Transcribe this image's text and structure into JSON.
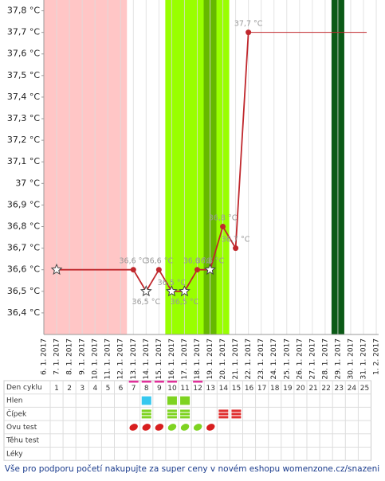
{
  "chart_data": {
    "type": "line",
    "categories": [
      "6. 1. 2017",
      "7. 1. 2017",
      "8. 1. 2017",
      "9. 1. 2017",
      "10. 1. 2017",
      "11. 1. 2017",
      "12. 1. 2017",
      "13. 1. 2017",
      "14. 1. 2017",
      "15. 1. 2017",
      "16. 1. 2017",
      "17. 1. 2017",
      "18. 1. 2017",
      "19. 1. 2017",
      "20. 1. 2017",
      "21. 1. 2017",
      "22. 1. 2017",
      "23. 1. 2017",
      "24. 1. 2017",
      "25. 1. 2017",
      "26. 1. 2017",
      "27. 1. 2017",
      "28. 1. 2017",
      "29. 1. 2017",
      "30. 1. 2017",
      "31. 1. 2017",
      "1. 2. 2017"
    ],
    "x": [
      "7. 1. 2017",
      "13. 1. 2017",
      "14. 1. 2017",
      "15. 1. 2017",
      "16. 1. 2017",
      "17. 1. 2017",
      "18. 1. 2017",
      "19. 1. 2017",
      "20. 1. 2017",
      "21. 1. 2017",
      "22. 1. 2017"
    ],
    "values": [
      36.6,
      36.6,
      36.5,
      36.6,
      36.5,
      36.5,
      36.6,
      36.6,
      36.8,
      36.7,
      37.7
    ],
    "value_labels": [
      null,
      "36,6 °C",
      "36,5 °C",
      "36,6 °C",
      "36,5 °C",
      "36,5 °C",
      "36,6 °C",
      "36,6 °C",
      "36,8 °C",
      "36,7 °C",
      "37,7 °C"
    ],
    "markers": [
      "star",
      "dot",
      "star",
      "dot",
      "star",
      "star",
      "dot",
      "star",
      "dot",
      "dot",
      "dot"
    ],
    "color": "#c0282d",
    "ylim": [
      36.3,
      37.85
    ],
    "yticks": [
      {
        "value": 36.4,
        "label": "36,4 °C"
      },
      {
        "value": 36.5,
        "label": "36,5 °C"
      },
      {
        "value": 36.6,
        "label": "36,6 °C"
      },
      {
        "value": 36.7,
        "label": "36,7 °C"
      },
      {
        "value": 36.8,
        "label": "36,8 °C"
      },
      {
        "value": 36.9,
        "label": "36,9 °C"
      },
      {
        "value": 37,
        "label": "37 °C"
      },
      {
        "value": 37.1,
        "label": "37,1 °C"
      },
      {
        "value": 37.2,
        "label": "37,2 °C"
      },
      {
        "value": 37.3,
        "label": "37,3 °C"
      },
      {
        "value": 37.4,
        "label": "37,4 °C"
      },
      {
        "value": 37.5,
        "label": "37,5 °C"
      },
      {
        "value": 37.6,
        "label": "37,6 °C"
      },
      {
        "value": 37.7,
        "label": "37,7 °C"
      },
      {
        "value": 37.8,
        "label": "37,8 °C"
      }
    ],
    "bands": [
      {
        "from": "6. 1. 2017",
        "to": "12. 1. 2017",
        "color": "#ffc6c6"
      },
      {
        "from": "16. 1. 2017",
        "to": "20. 1. 2017",
        "color": "#99ff00"
      },
      {
        "from": "19. 1. 2017",
        "to": "19. 1. 2017",
        "color": "#66b800"
      },
      {
        "from": "29. 1. 2017",
        "to": "29. 1. 2017",
        "color": "#0b5a16"
      }
    ]
  },
  "table": {
    "header": "Den cyklu",
    "days": [
      1,
      2,
      3,
      4,
      5,
      6,
      7,
      8,
      9,
      10,
      11,
      12,
      13,
      14,
      15,
      16,
      17,
      18,
      19,
      20,
      21,
      22,
      23,
      24,
      25
    ],
    "top_marks": [
      7,
      8,
      9,
      10,
      12
    ],
    "rows": [
      {
        "label": "Hlen",
        "marks": {
          "8": "#35c8ef",
          "10": "#7ed321",
          "11": "#7ed321"
        }
      },
      {
        "label": "Čípek",
        "marks": {
          "8": "#7ed321",
          "10": "#7ed321",
          "11": "#7ed321",
          "14": "#e03030",
          "15": "#e03030"
        }
      },
      {
        "label": "Ovu test",
        "marks": {
          "7": "#d81e1e",
          "8": "#d81e1e",
          "9": "#d81e1e",
          "10": "#7ed321",
          "11": "#7ed321",
          "12": "#7ed321",
          "13": "#d81e1e"
        }
      },
      {
        "label": "Těhu test",
        "marks": {}
      },
      {
        "label": "Léky",
        "marks": {}
      }
    ]
  },
  "footer": "Vše pro podporu početí nakupujte za super ceny v novém eshopu womenzone.cz/snazeni"
}
